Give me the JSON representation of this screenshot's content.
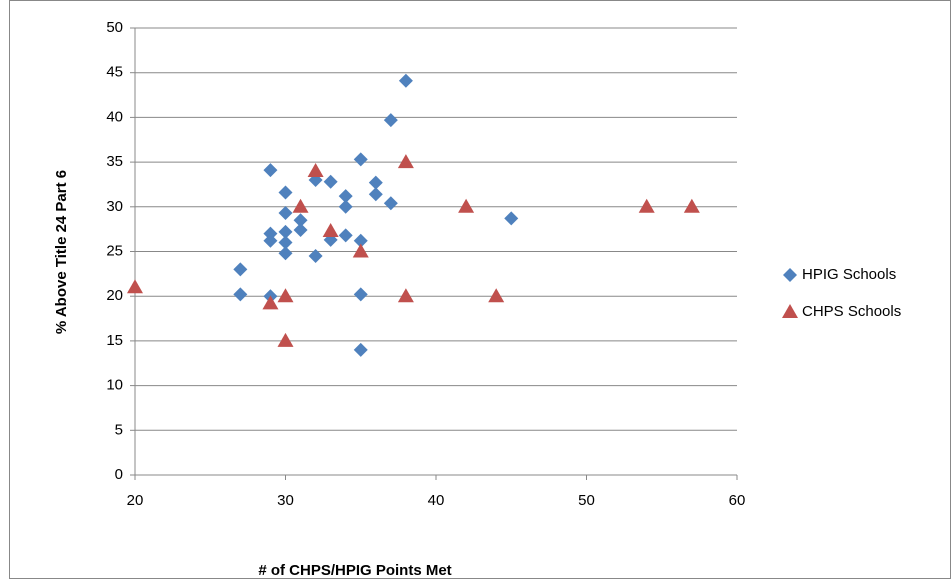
{
  "chart_data": {
    "type": "scatter",
    "x_label": "# of CHPS/HPIG Points Met",
    "y_label": "% Above Title 24 Part 6",
    "xlim": [
      20,
      60
    ],
    "xticks": [
      20,
      30,
      40,
      50,
      60
    ],
    "ylim": [
      0,
      50
    ],
    "yticks": [
      0,
      5,
      10,
      15,
      20,
      25,
      30,
      35,
      40,
      45,
      50
    ],
    "grid": true,
    "legend": "right",
    "series": [
      {
        "name": "HPIG Schools",
        "color": "#4f81bd",
        "marker": "diamond",
        "x": [
          27,
          27,
          29,
          29,
          29,
          29,
          30,
          30,
          30,
          30,
          30,
          31,
          31,
          32,
          32,
          33,
          33,
          34,
          34,
          34,
          35,
          35,
          35,
          35,
          36,
          36,
          37,
          37,
          38,
          45
        ],
        "values": [
          23,
          20.2,
          34.1,
          27,
          26.2,
          20,
          31.6,
          29.3,
          27.2,
          26,
          24.8,
          28.5,
          27.4,
          33,
          24.5,
          32.8,
          26.3,
          31.2,
          30,
          26.8,
          35.3,
          26.2,
          20.2,
          14,
          32.7,
          31.4,
          39.7,
          30.4,
          44.1,
          28.7
        ]
      },
      {
        "name": "CHPS Schools",
        "color": "#c0504d",
        "marker": "triangle",
        "x": [
          20,
          29,
          30,
          30,
          31,
          32,
          33,
          35,
          38,
          38,
          42,
          44,
          54,
          57
        ],
        "values": [
          21,
          19.2,
          20,
          15,
          30,
          34,
          27.3,
          25,
          35,
          20,
          30,
          20,
          30,
          30
        ]
      }
    ]
  }
}
